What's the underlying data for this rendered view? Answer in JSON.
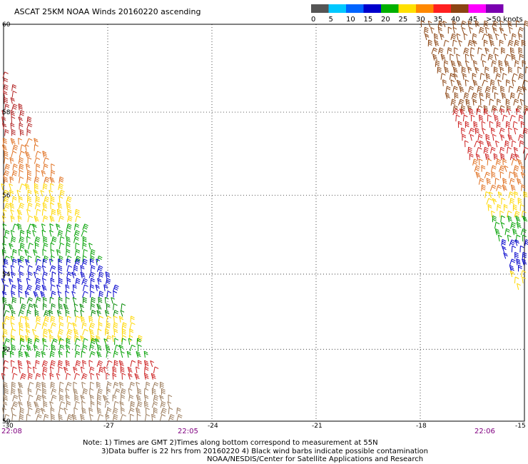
{
  "title": "ASCAT 25KM NOAA Winds 20160220 ascending",
  "legend": {
    "labels": [
      "0",
      "5",
      "10",
      "15",
      "20",
      "25",
      "30",
      "35",
      "40",
      "45",
      ">50 knots"
    ],
    "colors": [
      "#555555",
      "#00c8ff",
      "#0064ff",
      "#0000cc",
      "#00b000",
      "#ffe000",
      "#ff8800",
      "#ff2020",
      "#8b4513",
      "#ff00ff",
      "#7a00b0"
    ]
  },
  "axes": {
    "lat_labels": [
      "60",
      "58",
      "56",
      "54",
      "52",
      "50"
    ],
    "lon_labels": [
      "-30",
      "-27",
      "-24",
      "-21",
      "-18",
      "-15"
    ]
  },
  "pass_times": [
    "22:08",
    "22:05",
    "22:06"
  ],
  "notes": [
    "Note: 1) Times are GMT 2)Times along bottom correspond to measurement at 55N",
    "3)Data buffer is 22 hrs from 20160220 4) Black wind barbs indicate possible contamination",
    "NOAA/NESDIS/Center for Satellite Applications and Research"
  ],
  "swaths": [
    {
      "name": "west-swath",
      "bands": [
        {
          "lat_from": 59.0,
          "lat_to": 57.3,
          "color": "#b22222"
        },
        {
          "lat_from": 57.3,
          "lat_to": 56.2,
          "color": "#e07020"
        },
        {
          "lat_from": 56.2,
          "lat_to": 55.2,
          "color": "#ffd700"
        },
        {
          "lat_from": 55.2,
          "lat_to": 54.3,
          "color": "#00a000"
        },
        {
          "lat_from": 54.3,
          "lat_to": 53.3,
          "color": "#0000cc"
        },
        {
          "lat_from": 53.3,
          "lat_to": 52.8,
          "color": "#008800"
        },
        {
          "lat_from": 52.8,
          "lat_to": 52.2,
          "color": "#ffd700"
        },
        {
          "lat_from": 52.2,
          "lat_to": 51.6,
          "color": "#00a000"
        },
        {
          "lat_from": 51.6,
          "lat_to": 51.0,
          "color": "#cc2020"
        },
        {
          "lat_from": 51.0,
          "lat_to": 50.0,
          "color": "#9b7b5b"
        }
      ]
    },
    {
      "name": "east-swath",
      "bands": [
        {
          "lat_from": 60.0,
          "lat_to": 59.4,
          "color": "#8b4513"
        },
        {
          "lat_from": 59.4,
          "lat_to": 58.0,
          "color": "#8b4513"
        },
        {
          "lat_from": 58.0,
          "lat_to": 56.8,
          "color": "#cc2020"
        },
        {
          "lat_from": 56.8,
          "lat_to": 56.0,
          "color": "#e07020"
        },
        {
          "lat_from": 56.0,
          "lat_to": 55.4,
          "color": "#ffd700"
        },
        {
          "lat_from": 55.4,
          "lat_to": 54.8,
          "color": "#00a000"
        },
        {
          "lat_from": 54.8,
          "lat_to": 54.0,
          "color": "#0000cc"
        },
        {
          "lat_from": 54.0,
          "lat_to": 53.5,
          "color": "#ffd700"
        }
      ]
    }
  ]
}
